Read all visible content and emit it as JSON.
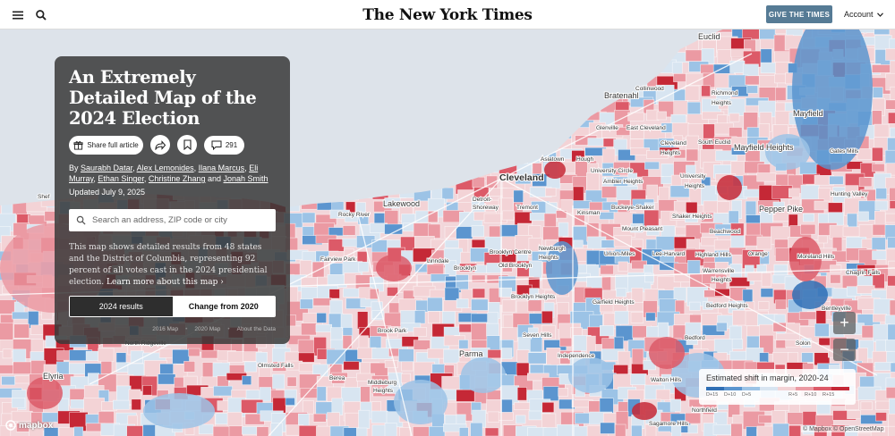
{
  "header": {
    "menu_icon": "menu-icon",
    "search_icon": "search-icon",
    "logo": "The New York Times",
    "give_label": "GIVE THE TIMES",
    "account_label": "Account"
  },
  "panel": {
    "title": "An Extremely Detailed Map of the 2024 Election",
    "share_label": "Share full article",
    "comment_count": "291",
    "byline_prefix": "By",
    "authors": [
      "Saurabh Datar",
      "Alex Lemonides",
      "Ilana Marcus",
      "Eli Murray",
      "Ethan Singer",
      "Christine Zhang",
      "Jonah Smith"
    ],
    "byline_and": "and",
    "updated": "Updated July 9, 2025",
    "search_placeholder": "Search an address, ZIP code or city",
    "description": "This map shows detailed results from 48 states and the District of Columbia, representing 92 percent of all votes cast in the 2024 presidential election.",
    "learn_more": "Learn more about this map ›",
    "toggle_left": "2024 results",
    "toggle_right": "Change from 2020",
    "links": [
      "2016 Map",
      "2020 Map",
      "About the Data"
    ]
  },
  "legend": {
    "title": "Estimated shift in margin, 2020-24",
    "labels": [
      "D+15",
      "D+10",
      "D+5",
      "R+5",
      "R+10",
      "R+15"
    ],
    "colors": [
      "#2f6fb5",
      "#5b95cf",
      "#9cc3e6",
      "#d8e5f1",
      "#f3d3d6",
      "#eb9aa3",
      "#dc5a68",
      "#c52836"
    ]
  },
  "map": {
    "zoom_in": "+",
    "zoom_out": "−",
    "mapbox_label": "mapbox",
    "attribution": "© Mapbox © OpenStreetMap",
    "places": [
      {
        "name": "Euclid",
        "size": "md"
      },
      {
        "name": "Collinwood",
        "size": "sm"
      },
      {
        "name": "Bratenahl",
        "size": "md"
      },
      {
        "name": "Richmond",
        "size": "sm"
      },
      {
        "name": "Heights",
        "size": "sm"
      },
      {
        "name": "Mayfield",
        "size": "md"
      },
      {
        "name": "Glenville",
        "size": "sm"
      },
      {
        "name": "East Cleveland",
        "size": "sm"
      },
      {
        "name": "Cleveland",
        "size": "sm"
      },
      {
        "name": "Heights",
        "size": "sm"
      },
      {
        "name": "South Euclid",
        "size": "sm"
      },
      {
        "name": "Mayfield Heights",
        "size": "md"
      },
      {
        "name": "Gates Mills",
        "size": "sm"
      },
      {
        "name": "Asiatown",
        "size": "sm"
      },
      {
        "name": "Hough",
        "size": "sm"
      },
      {
        "name": "University Circle",
        "size": "sm"
      },
      {
        "name": "Ambler Heights",
        "size": "sm"
      },
      {
        "name": "University",
        "size": "sm"
      },
      {
        "name": "Heights",
        "size": "sm"
      },
      {
        "name": "Cleveland",
        "size": "big"
      },
      {
        "name": "Hunting Valley",
        "size": "sm"
      },
      {
        "name": "Shef",
        "size": "sm"
      },
      {
        "name": "Lakewood",
        "size": "md"
      },
      {
        "name": "Detroit-",
        "size": "sm"
      },
      {
        "name": "Shoreway",
        "size": "sm"
      },
      {
        "name": "Tremont",
        "size": "sm"
      },
      {
        "name": "Kinsman",
        "size": "sm"
      },
      {
        "name": "Buckeye-Shaker",
        "size": "sm"
      },
      {
        "name": "Shaker Heights",
        "size": "sm"
      },
      {
        "name": "Pepper Pike",
        "size": "md"
      },
      {
        "name": "Rocky River",
        "size": "sm"
      },
      {
        "name": "Mount Pleasant",
        "size": "sm"
      },
      {
        "name": "Beachwood",
        "size": "sm"
      },
      {
        "name": "Newburgh",
        "size": "sm"
      },
      {
        "name": "Heights",
        "size": "sm"
      },
      {
        "name": "Brooklyn Centre",
        "size": "sm"
      },
      {
        "name": "Union-Miles",
        "size": "sm"
      },
      {
        "name": "Lee-Harvard",
        "size": "sm"
      },
      {
        "name": "Highland Hills",
        "size": "sm"
      },
      {
        "name": "Orange",
        "size": "sm"
      },
      {
        "name": "Moreland Hills",
        "size": "sm"
      },
      {
        "name": "Chagrin Falls",
        "size": "sm"
      },
      {
        "name": "Fairview Park",
        "size": "sm"
      },
      {
        "name": "Linndale",
        "size": "sm"
      },
      {
        "name": "Brooklyn",
        "size": "sm"
      },
      {
        "name": "Old Brooklyn",
        "size": "sm"
      },
      {
        "name": "Warrensville",
        "size": "sm"
      },
      {
        "name": "Heights",
        "size": "sm"
      },
      {
        "name": "Brooklyn Heights",
        "size": "sm"
      },
      {
        "name": "Garfield Heights",
        "size": "sm"
      },
      {
        "name": "Bedford Heights",
        "size": "sm"
      },
      {
        "name": "Bentleyville",
        "size": "sm"
      },
      {
        "name": "North Ridgeville",
        "size": "sm"
      },
      {
        "name": "Brook Park",
        "size": "sm"
      },
      {
        "name": "Seven Hills",
        "size": "sm"
      },
      {
        "name": "Bedford",
        "size": "sm"
      },
      {
        "name": "Solon",
        "size": "sm"
      },
      {
        "name": "Parma",
        "size": "md"
      },
      {
        "name": "Independence",
        "size": "sm"
      },
      {
        "name": "Olmsted Falls",
        "size": "sm"
      },
      {
        "name": "Elyria",
        "size": "md"
      },
      {
        "name": "Berea",
        "size": "sm"
      },
      {
        "name": "Middleburg",
        "size": "sm"
      },
      {
        "name": "Heights",
        "size": "sm"
      },
      {
        "name": "Walton Hills",
        "size": "sm"
      },
      {
        "name": "Northfield",
        "size": "sm"
      },
      {
        "name": "Sagamore Hills",
        "size": "sm"
      }
    ]
  }
}
